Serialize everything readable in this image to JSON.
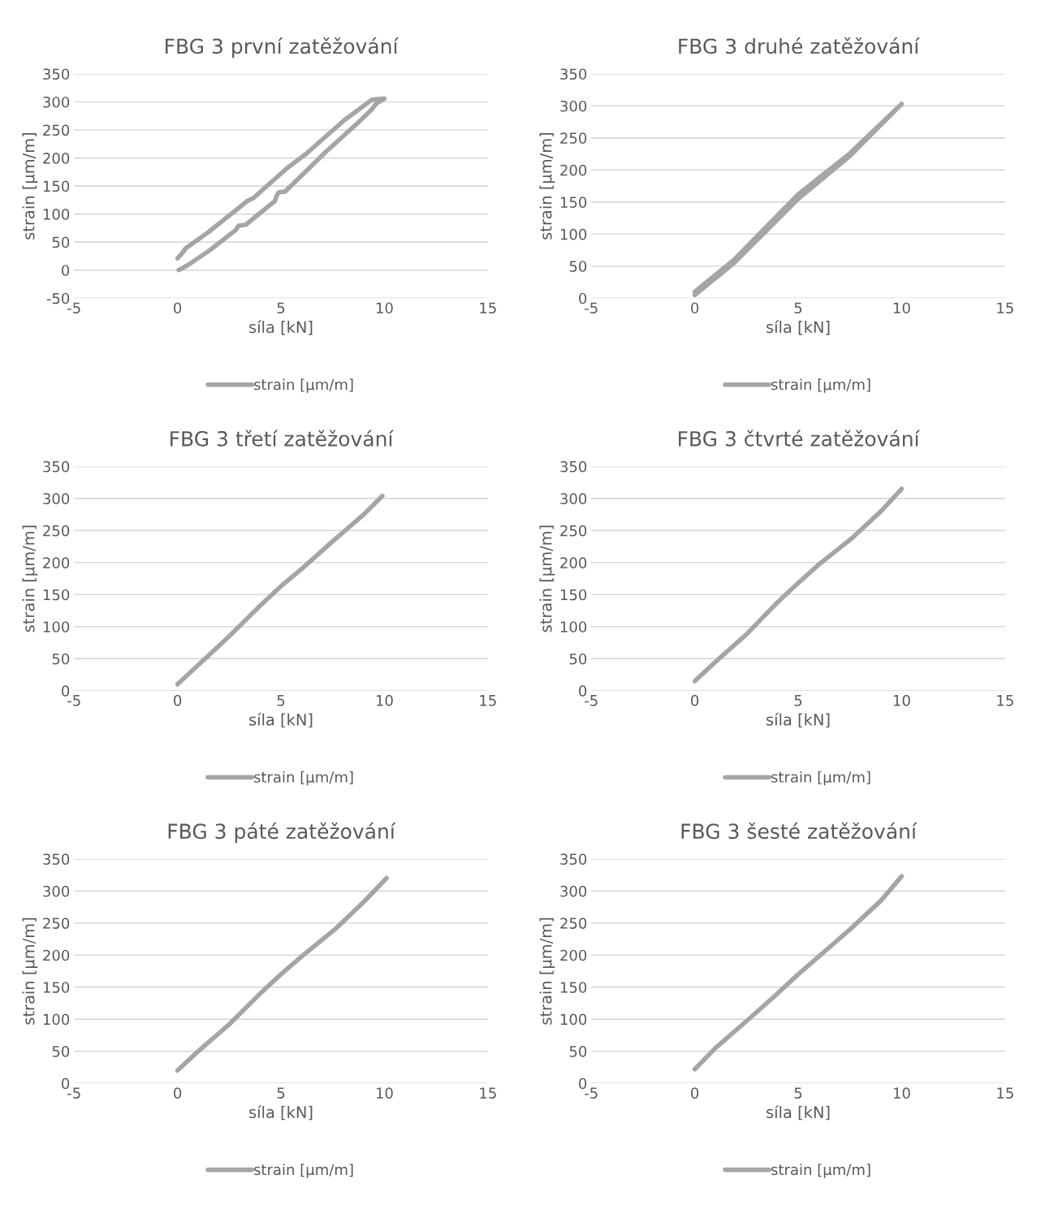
{
  "chart_data": [
    {
      "type": "line",
      "title": "FBG 3 první zatěžování",
      "xlabel": "síla [kN]",
      "ylabel": "strain [µm/m]",
      "xlim": [
        -5,
        15
      ],
      "xticks": [
        -5,
        0,
        5,
        10,
        15
      ],
      "ylim": [
        -50,
        350
      ],
      "yticks": [
        -50,
        0,
        50,
        100,
        150,
        200,
        250,
        300,
        350
      ],
      "grid": "y",
      "legend": "bottom",
      "marker": "none",
      "series": [
        {
          "name": "strain [µm/m]",
          "color": "#a5a5a5",
          "x": [
            0.06,
            0.5,
            1.5,
            2.8,
            2.95,
            3.3,
            4.7,
            4.8,
            4.9,
            5.2,
            7.2,
            8.7,
            9.4,
            9.6,
            10,
            9.4,
            8.05,
            6.2,
            5.3,
            3.65,
            3.4,
            1.5,
            0.4,
            0.2,
            0
          ],
          "values": [
            0,
            9,
            34,
            71,
            79,
            81,
            123,
            133,
            139,
            140,
            212,
            262,
            287,
            297,
            306,
            304,
            267,
            207,
            182,
            128,
            124,
            68,
            39,
            29,
            21
          ]
        }
      ]
    },
    {
      "type": "line",
      "title": "FBG 3 druhé zatěžování",
      "xlabel": "síla [kN]",
      "ylabel": "strain [µm/m]",
      "xlim": [
        -5,
        15
      ],
      "xticks": [
        -5,
        0,
        5,
        10,
        15
      ],
      "ylim": [
        0,
        350
      ],
      "yticks": [
        0,
        50,
        100,
        150,
        200,
        250,
        300,
        350
      ],
      "grid": "y",
      "legend": "bottom",
      "marker": "none",
      "series": [
        {
          "name": "strain [µm/m]",
          "color": "#a5a5a5",
          "x": [
            0,
            1.9,
            3.3,
            5,
            7.5,
            10,
            7.5,
            5,
            3.3,
            1.9,
            0
          ],
          "values": [
            5,
            55,
            100,
            155,
            222,
            303,
            226,
            162,
            106,
            60,
            10
          ]
        }
      ]
    },
    {
      "type": "line",
      "title": "FBG 3 třetí zatěžování",
      "xlabel": "síla [kN]",
      "ylabel": "strain [µm/m]",
      "xlim": [
        -5,
        15
      ],
      "xticks": [
        -5,
        0,
        5,
        10,
        15
      ],
      "ylim": [
        0,
        350
      ],
      "yticks": [
        0,
        50,
        100,
        150,
        200,
        250,
        300,
        350
      ],
      "grid": "y",
      "legend": "bottom",
      "marker": "none",
      "series": [
        {
          "name": "strain [µm/m]",
          "color": "#a5a5a5",
          "x": [
            0,
            1,
            2.5,
            4,
            5,
            6,
            7.6,
            9,
            9.9
          ],
          "values": [
            10,
            40,
            85,
            133,
            163,
            190,
            236,
            275,
            304
          ]
        }
      ]
    },
    {
      "type": "line",
      "title": "FBG 3 čtvrté zatěžování",
      "xlabel": "síla [kN]",
      "ylabel": "strain [µm/m]",
      "xlim": [
        -5,
        15
      ],
      "xticks": [
        -5,
        0,
        5,
        10,
        15
      ],
      "ylim": [
        0,
        350
      ],
      "yticks": [
        0,
        50,
        100,
        150,
        200,
        250,
        300,
        350
      ],
      "grid": "y",
      "legend": "bottom",
      "marker": "none",
      "series": [
        {
          "name": "strain [µm/m]",
          "color": "#a5a5a5",
          "x": [
            0,
            1,
            2.5,
            4,
            5,
            6,
            7.6,
            9,
            10
          ],
          "values": [
            15,
            45,
            88,
            138,
            168,
            197,
            238,
            280,
            315
          ]
        }
      ]
    },
    {
      "type": "line",
      "title": "FBG 3 páté zatěžování",
      "xlabel": "síla [kN]",
      "ylabel": "strain [µm/m]",
      "xlim": [
        -5,
        15
      ],
      "xticks": [
        -5,
        0,
        5,
        10,
        15
      ],
      "ylim": [
        0,
        350
      ],
      "yticks": [
        0,
        50,
        100,
        150,
        200,
        250,
        300,
        350
      ],
      "grid": "y",
      "legend": "bottom",
      "marker": "none",
      "series": [
        {
          "name": "strain [µm/m]",
          "color": "#a5a5a5",
          "x": [
            0,
            1,
            2.5,
            4,
            5,
            6,
            7.6,
            9,
            10.1
          ],
          "values": [
            20,
            50,
            92,
            140,
            170,
            198,
            240,
            283,
            320
          ]
        }
      ]
    },
    {
      "type": "line",
      "title": "FBG 3 šesté zatěžování",
      "xlabel": "síla [kN]",
      "ylabel": "strain [µm/m]",
      "xlim": [
        -5,
        15
      ],
      "xticks": [
        -5,
        0,
        5,
        10,
        15
      ],
      "ylim": [
        0,
        350
      ],
      "yticks": [
        0,
        50,
        100,
        150,
        200,
        250,
        300,
        350
      ],
      "grid": "y",
      "legend": "bottom",
      "marker": "none",
      "series": [
        {
          "name": "strain [µm/m]",
          "color": "#a5a5a5",
          "x": [
            0,
            1,
            2.5,
            4,
            5,
            6,
            7.5,
            9,
            10
          ],
          "values": [
            22,
            55,
            97,
            140,
            170,
            198,
            240,
            285,
            323
          ]
        }
      ]
    }
  ]
}
